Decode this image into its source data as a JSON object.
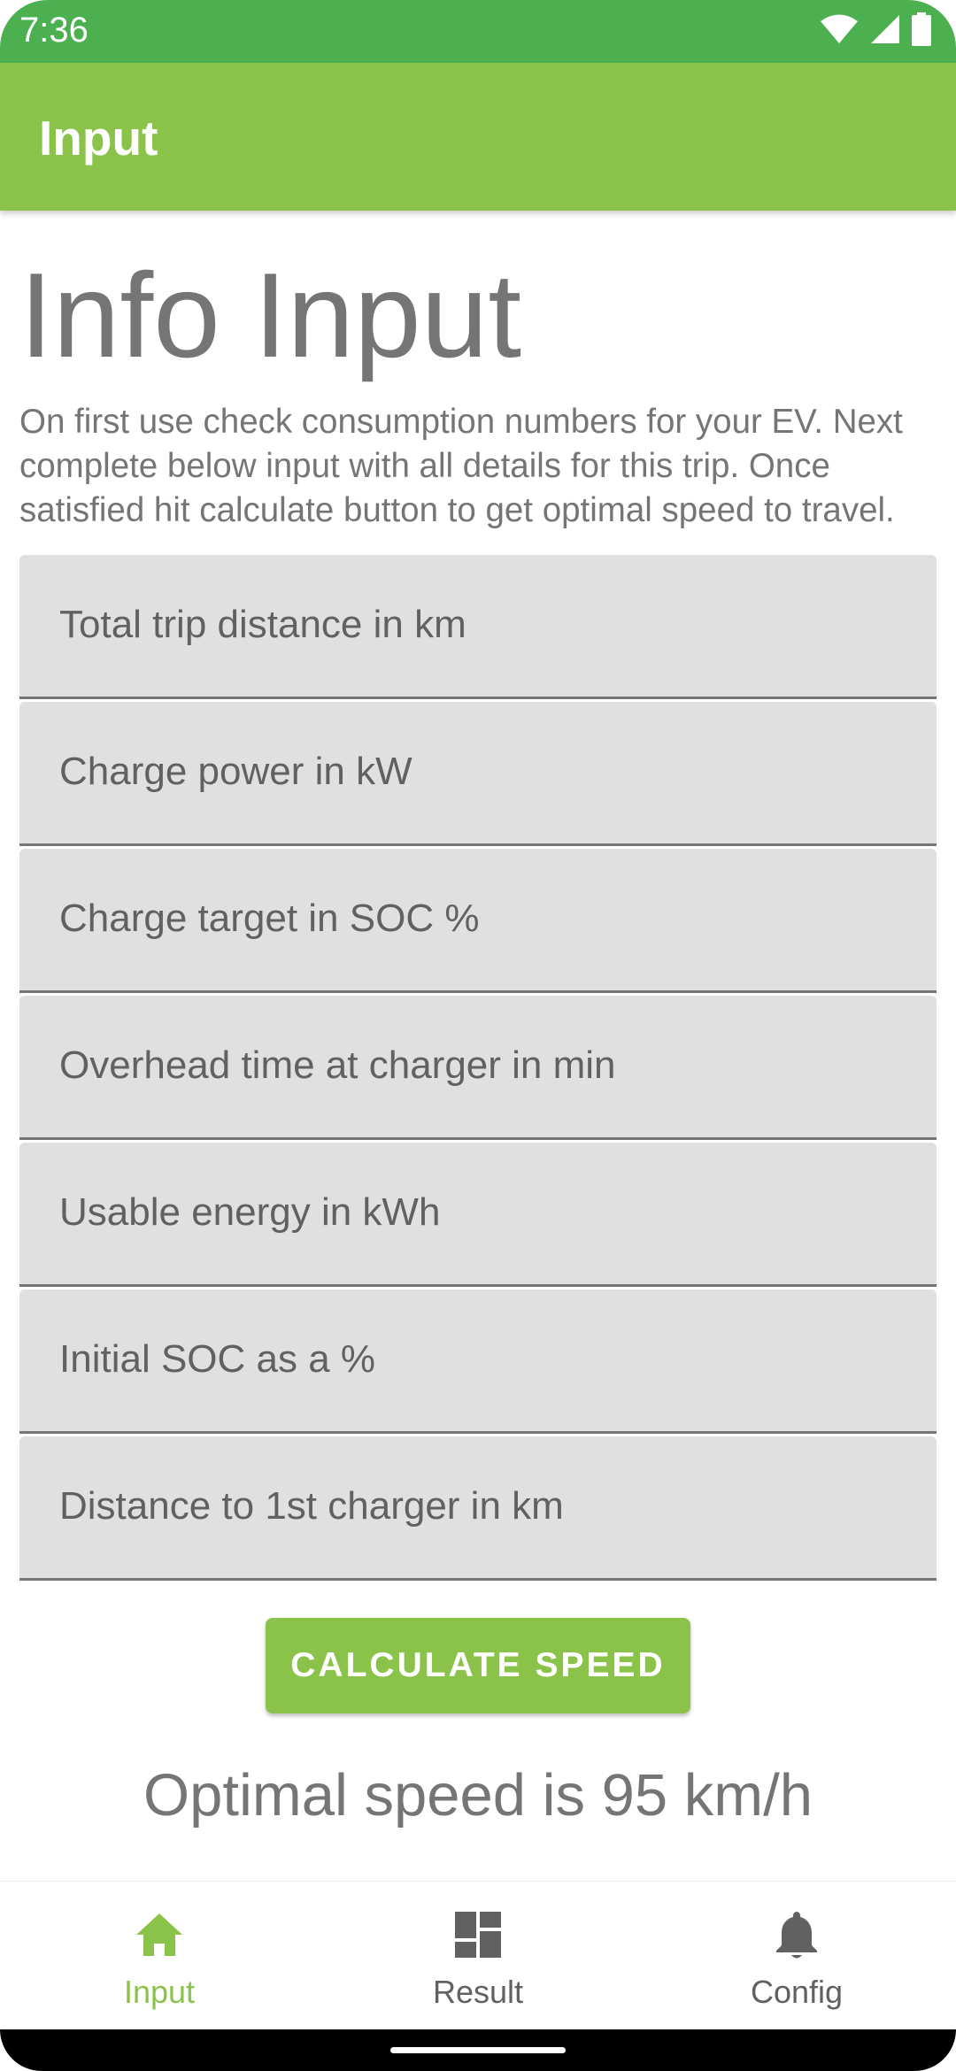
{
  "status_bar": {
    "time": "7:36"
  },
  "app_bar": {
    "title": "Input"
  },
  "main": {
    "heading": "Info Input",
    "intro": "On first use check consumption numbers for your EV. Next complete below input with all details for this trip. Once satisfied hit calculate button to get optimal speed to travel.",
    "fields": [
      {
        "placeholder": "Total trip distance in km",
        "value": ""
      },
      {
        "placeholder": "Charge power in kW",
        "value": ""
      },
      {
        "placeholder": "Charge target in SOC %",
        "value": ""
      },
      {
        "placeholder": "Overhead time at charger in min",
        "value": ""
      },
      {
        "placeholder": "Usable energy in kWh",
        "value": ""
      },
      {
        "placeholder": "Initial SOC as a %",
        "value": ""
      },
      {
        "placeholder": "Distance to 1st charger in km",
        "value": ""
      }
    ],
    "calculate_label": "CALCULATE SPEED",
    "result": "Optimal speed is 95 km/h"
  },
  "bottom_nav": {
    "items": [
      {
        "label": "Input",
        "icon": "home-icon",
        "active": true
      },
      {
        "label": "Result",
        "icon": "dashboard-icon",
        "active": false
      },
      {
        "label": "Config",
        "icon": "bell-icon",
        "active": false
      }
    ]
  },
  "colors": {
    "status_bar": "#4caf50",
    "app_bar": "#8bc34a",
    "accent": "#8bc34a",
    "field_bg": "#e0e0e0",
    "text_secondary": "#757575",
    "nav_inactive": "#616161"
  }
}
